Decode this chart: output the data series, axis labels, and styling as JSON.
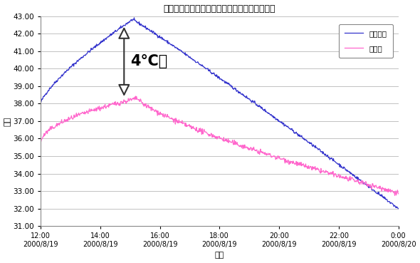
{
  "title": "コンクリート屋根と瓦屋根との日中温度差比較",
  "xlabel": "時間",
  "ylabel": "温度",
  "ylim": [
    31.0,
    43.0
  ],
  "yticks": [
    31.0,
    32.0,
    33.0,
    34.0,
    35.0,
    36.0,
    37.0,
    38.0,
    39.0,
    40.0,
    41.0,
    42.0,
    43.0
  ],
  "xtick_labels": [
    "12:00\n2000/8/19",
    "14:00\n2000/8/19",
    "16:00\n2000/8/19",
    "18:00\n2000/8/19",
    "20:00\n2000/8/19",
    "22:00\n2000/8/19",
    "0:00\n2000/8/20"
  ],
  "xtick_positions": [
    0,
    120,
    240,
    360,
    480,
    600,
    720
  ],
  "xlim": [
    0,
    720
  ],
  "slab_color": "#3333cc",
  "kawara_color": "#ff66cc",
  "legend_labels": [
    "スラブ板",
    "重ね瓦"
  ],
  "annotation_text": "4℃差",
  "bg_color": "#ffffff",
  "grid_color": "#aaaaaa",
  "title_fontsize": 9,
  "axis_fontsize": 8,
  "tick_fontsize": 7.5
}
